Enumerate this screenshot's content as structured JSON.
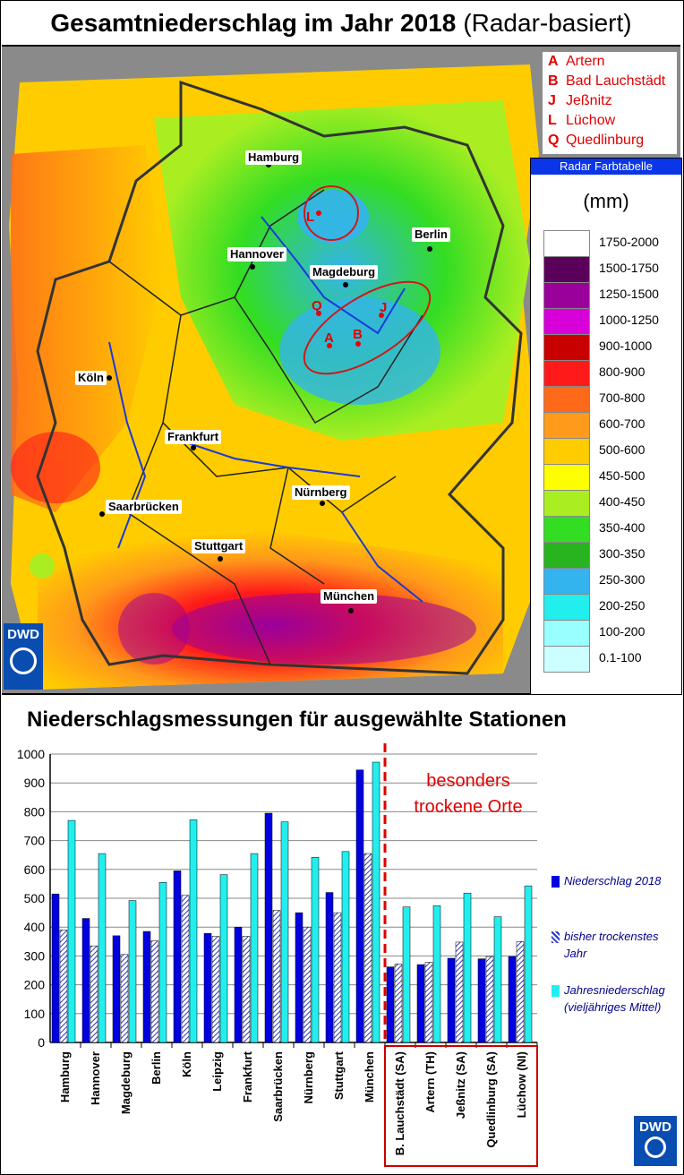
{
  "title": {
    "bold": "Gesamtniederschlag im Jahr 2018",
    "rest": "(Radar-basiert)"
  },
  "station_legend": [
    {
      "letter": "A",
      "name": "Artern"
    },
    {
      "letter": "B",
      "name": "Bad Lauchstädt"
    },
    {
      "letter": "J",
      "name": "Jeßnitz"
    },
    {
      "letter": "L",
      "name": "Lüchow"
    },
    {
      "letter": "Q",
      "name": "Quedlinburg"
    }
  ],
  "color_table": {
    "header": "Radar Farbtabelle",
    "unit": "(mm)",
    "rows": [
      {
        "label": "1750-2000",
        "color": "#ffffff"
      },
      {
        "label": "1500-1750",
        "color": "#5a005a"
      },
      {
        "label": "1250-1500",
        "color": "#9a009a"
      },
      {
        "label": "1000-1250",
        "color": "#d800d8"
      },
      {
        "label": "900-1000",
        "color": "#c80000"
      },
      {
        "label": "800-900",
        "color": "#ff1a1a"
      },
      {
        "label": "700-800",
        "color": "#ff6a1a"
      },
      {
        "label": "600-700",
        "color": "#ff9a1a"
      },
      {
        "label": "500-600",
        "color": "#ffcc00"
      },
      {
        "label": "450-500",
        "color": "#ffff00"
      },
      {
        "label": "400-450",
        "color": "#aaee22"
      },
      {
        "label": "350-400",
        "color": "#33dd22"
      },
      {
        "label": "300-350",
        "color": "#28b41e"
      },
      {
        "label": "250-300",
        "color": "#33b4ee"
      },
      {
        "label": "200-250",
        "color": "#22eeee"
      },
      {
        "label": "100-200",
        "color": "#99ffff"
      },
      {
        "label": "0.1-100",
        "color": "#ccffff"
      }
    ]
  },
  "map": {
    "cities": [
      "Hamburg",
      "Berlin",
      "Hannover",
      "Magdeburg",
      "Köln",
      "Frankfurt",
      "Saarbrücken",
      "Nürnberg",
      "Stuttgart",
      "München"
    ],
    "markers": [
      "L",
      "J",
      "Q",
      "A",
      "B"
    ],
    "logo": "DWD"
  },
  "chart_data": {
    "type": "bar",
    "title": "Niederschlagsmessungen für ausgewählte Stationen",
    "categories": [
      "Hamburg",
      "Hannover",
      "Magdeburg",
      "Berlin",
      "Köln",
      "Leipzig",
      "Frankfurt",
      "Saarbrücken",
      "Nürnberg",
      "Stuttgart",
      "München",
      "B. Lauchstädt (SA)",
      "Artern (TH)",
      "Jeßnitz (SA)",
      "Quedlinburg (SA)",
      "Lüchow (NI)"
    ],
    "series": [
      {
        "name": "Niederschlag 2018",
        "values": [
          515,
          430,
          370,
          385,
          595,
          378,
          400,
          795,
          450,
          520,
          945,
          262,
          270,
          292,
          290,
          298
        ]
      },
      {
        "name": "bisher trockenstes Jahr",
        "values": [
          390,
          335,
          305,
          352,
          510,
          368,
          368,
          458,
          400,
          450,
          655,
          272,
          278,
          348,
          298,
          350
        ]
      },
      {
        "name": "Jahresniederschlag (vieljähriges Mittel)",
        "values": [
          770,
          655,
          492,
          555,
          772,
          582,
          655,
          765,
          642,
          662,
          972,
          470,
          474,
          518,
          436,
          543
        ]
      }
    ],
    "colors": [
      "#0000e0",
      "#9ea6e0",
      "#22eeee"
    ],
    "ylim": [
      0,
      1000
    ],
    "yticks": [
      "0",
      "100",
      "200",
      "300",
      "400",
      "500",
      "600",
      "700",
      "800",
      "900",
      "1000"
    ],
    "annotation": [
      "besonders",
      "trockene Orte"
    ],
    "logo": "DWD"
  }
}
